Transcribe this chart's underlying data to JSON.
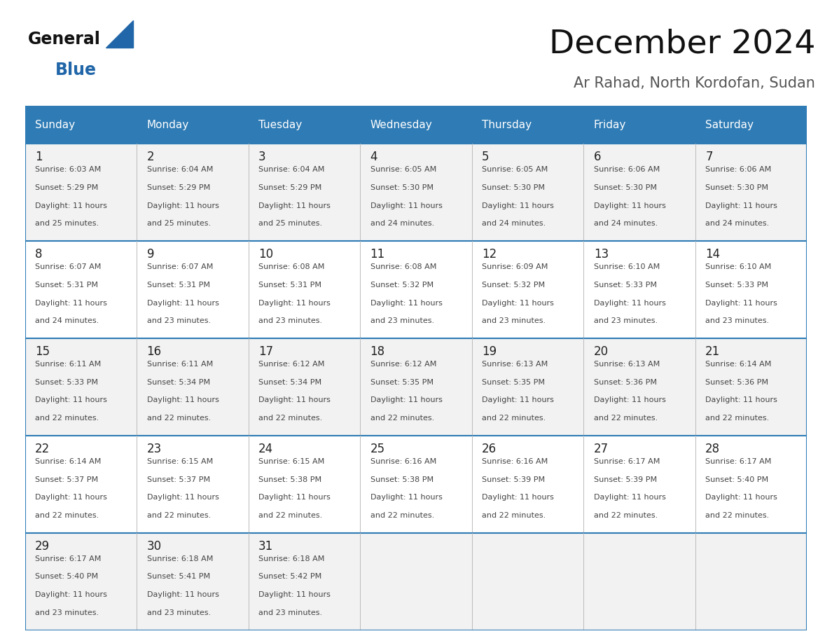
{
  "title": "December 2024",
  "subtitle": "Ar Rahad, North Kordofan, Sudan",
  "header_bg_color": "#2E7BB5",
  "header_text_color": "#FFFFFF",
  "day_headers": [
    "Sunday",
    "Monday",
    "Tuesday",
    "Wednesday",
    "Thursday",
    "Friday",
    "Saturday"
  ],
  "row_bg_colors": [
    "#F2F2F2",
    "#FFFFFF"
  ],
  "border_color": "#2E7BB5",
  "grid_line_color": "#BBBBBB",
  "cell_text_color": "#444444",
  "day_num_color": "#222222",
  "logo_triangle_color": "#2166a8",
  "logo_general_color": "#111111",
  "logo_blue_color": "#2166a8",
  "calendar_data": [
    [
      {
        "day": "1",
        "sunrise": "6:03 AM",
        "sunset": "5:29 PM",
        "daylight_h": "11 hours",
        "daylight_m": "and 25 minutes."
      },
      {
        "day": "2",
        "sunrise": "6:04 AM",
        "sunset": "5:29 PM",
        "daylight_h": "11 hours",
        "daylight_m": "and 25 minutes."
      },
      {
        "day": "3",
        "sunrise": "6:04 AM",
        "sunset": "5:29 PM",
        "daylight_h": "11 hours",
        "daylight_m": "and 25 minutes."
      },
      {
        "day": "4",
        "sunrise": "6:05 AM",
        "sunset": "5:30 PM",
        "daylight_h": "11 hours",
        "daylight_m": "and 24 minutes."
      },
      {
        "day": "5",
        "sunrise": "6:05 AM",
        "sunset": "5:30 PM",
        "daylight_h": "11 hours",
        "daylight_m": "and 24 minutes."
      },
      {
        "day": "6",
        "sunrise": "6:06 AM",
        "sunset": "5:30 PM",
        "daylight_h": "11 hours",
        "daylight_m": "and 24 minutes."
      },
      {
        "day": "7",
        "sunrise": "6:06 AM",
        "sunset": "5:30 PM",
        "daylight_h": "11 hours",
        "daylight_m": "and 24 minutes."
      }
    ],
    [
      {
        "day": "8",
        "sunrise": "6:07 AM",
        "sunset": "5:31 PM",
        "daylight_h": "11 hours",
        "daylight_m": "and 24 minutes."
      },
      {
        "day": "9",
        "sunrise": "6:07 AM",
        "sunset": "5:31 PM",
        "daylight_h": "11 hours",
        "daylight_m": "and 23 minutes."
      },
      {
        "day": "10",
        "sunrise": "6:08 AM",
        "sunset": "5:31 PM",
        "daylight_h": "11 hours",
        "daylight_m": "and 23 minutes."
      },
      {
        "day": "11",
        "sunrise": "6:08 AM",
        "sunset": "5:32 PM",
        "daylight_h": "11 hours",
        "daylight_m": "and 23 minutes."
      },
      {
        "day": "12",
        "sunrise": "6:09 AM",
        "sunset": "5:32 PM",
        "daylight_h": "11 hours",
        "daylight_m": "and 23 minutes."
      },
      {
        "day": "13",
        "sunrise": "6:10 AM",
        "sunset": "5:33 PM",
        "daylight_h": "11 hours",
        "daylight_m": "and 23 minutes."
      },
      {
        "day": "14",
        "sunrise": "6:10 AM",
        "sunset": "5:33 PM",
        "daylight_h": "11 hours",
        "daylight_m": "and 23 minutes."
      }
    ],
    [
      {
        "day": "15",
        "sunrise": "6:11 AM",
        "sunset": "5:33 PM",
        "daylight_h": "11 hours",
        "daylight_m": "and 22 minutes."
      },
      {
        "day": "16",
        "sunrise": "6:11 AM",
        "sunset": "5:34 PM",
        "daylight_h": "11 hours",
        "daylight_m": "and 22 minutes."
      },
      {
        "day": "17",
        "sunrise": "6:12 AM",
        "sunset": "5:34 PM",
        "daylight_h": "11 hours",
        "daylight_m": "and 22 minutes."
      },
      {
        "day": "18",
        "sunrise": "6:12 AM",
        "sunset": "5:35 PM",
        "daylight_h": "11 hours",
        "daylight_m": "and 22 minutes."
      },
      {
        "day": "19",
        "sunrise": "6:13 AM",
        "sunset": "5:35 PM",
        "daylight_h": "11 hours",
        "daylight_m": "and 22 minutes."
      },
      {
        "day": "20",
        "sunrise": "6:13 AM",
        "sunset": "5:36 PM",
        "daylight_h": "11 hours",
        "daylight_m": "and 22 minutes."
      },
      {
        "day": "21",
        "sunrise": "6:14 AM",
        "sunset": "5:36 PM",
        "daylight_h": "11 hours",
        "daylight_m": "and 22 minutes."
      }
    ],
    [
      {
        "day": "22",
        "sunrise": "6:14 AM",
        "sunset": "5:37 PM",
        "daylight_h": "11 hours",
        "daylight_m": "and 22 minutes."
      },
      {
        "day": "23",
        "sunrise": "6:15 AM",
        "sunset": "5:37 PM",
        "daylight_h": "11 hours",
        "daylight_m": "and 22 minutes."
      },
      {
        "day": "24",
        "sunrise": "6:15 AM",
        "sunset": "5:38 PM",
        "daylight_h": "11 hours",
        "daylight_m": "and 22 minutes."
      },
      {
        "day": "25",
        "sunrise": "6:16 AM",
        "sunset": "5:38 PM",
        "daylight_h": "11 hours",
        "daylight_m": "and 22 minutes."
      },
      {
        "day": "26",
        "sunrise": "6:16 AM",
        "sunset": "5:39 PM",
        "daylight_h": "11 hours",
        "daylight_m": "and 22 minutes."
      },
      {
        "day": "27",
        "sunrise": "6:17 AM",
        "sunset": "5:39 PM",
        "daylight_h": "11 hours",
        "daylight_m": "and 22 minutes."
      },
      {
        "day": "28",
        "sunrise": "6:17 AM",
        "sunset": "5:40 PM",
        "daylight_h": "11 hours",
        "daylight_m": "and 22 minutes."
      }
    ],
    [
      {
        "day": "29",
        "sunrise": "6:17 AM",
        "sunset": "5:40 PM",
        "daylight_h": "11 hours",
        "daylight_m": "and 23 minutes."
      },
      {
        "day": "30",
        "sunrise": "6:18 AM",
        "sunset": "5:41 PM",
        "daylight_h": "11 hours",
        "daylight_m": "and 23 minutes."
      },
      {
        "day": "31",
        "sunrise": "6:18 AM",
        "sunset": "5:42 PM",
        "daylight_h": "11 hours",
        "daylight_m": "and 23 minutes."
      },
      null,
      null,
      null,
      null
    ]
  ]
}
